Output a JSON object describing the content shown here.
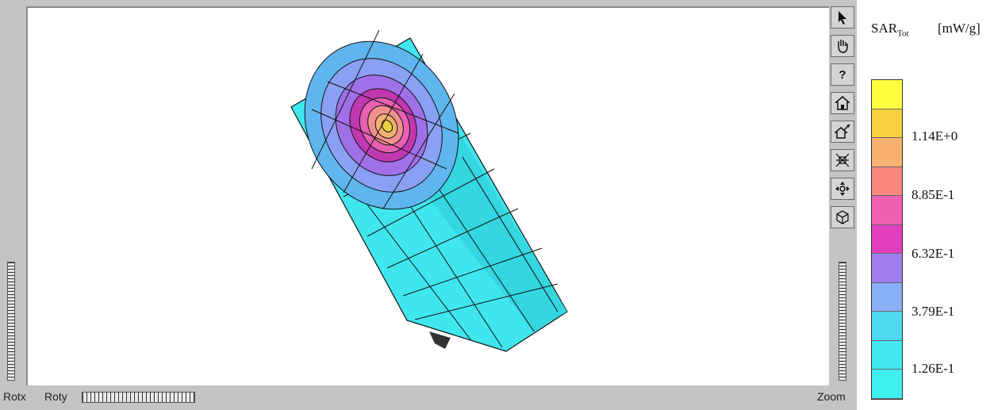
{
  "toolbar": {
    "tools": [
      {
        "name": "select-tool",
        "icon": "pointer-arrow-icon"
      },
      {
        "name": "pan-tool",
        "icon": "hand-icon"
      },
      {
        "name": "help-tool",
        "icon": "question-mark-icon",
        "label": "?"
      },
      {
        "name": "home-view-tool",
        "icon": "home-icon"
      },
      {
        "name": "set-home-tool",
        "icon": "set-home-icon"
      },
      {
        "name": "view-all-tool",
        "icon": "view-all-icon"
      },
      {
        "name": "seek-tool",
        "icon": "seek-crosshair-icon"
      },
      {
        "name": "perspective-tool",
        "icon": "perspective-cube-icon"
      }
    ]
  },
  "controls": {
    "rotx_label": "Rotx",
    "roty_label": "Roty",
    "zoom_label": "Zoom"
  },
  "legend": {
    "title": "SAR",
    "subscript": "Tot",
    "unit": "[mW/g]",
    "colors": [
      "#ffff40",
      "#f7d040",
      "#f7b070",
      "#f88880",
      "#f060b0",
      "#e040c0",
      "#a080f0",
      "#88b0f8",
      "#50d8f0",
      "#40e8f0",
      "#40f0f0"
    ],
    "tick_labels": [
      "1.14E+0",
      "8.85E-1",
      "6.32E-1",
      "3.79E-1",
      "1.26E-1"
    ]
  }
}
